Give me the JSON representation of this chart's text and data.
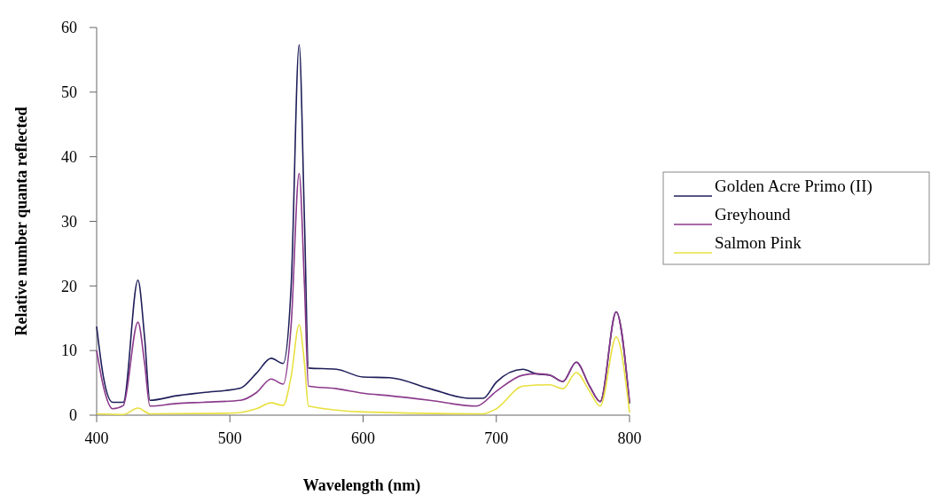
{
  "chart_data": {
    "type": "line",
    "xlabel": "Wavelength (nm)",
    "ylabel": "Relative number quanta reflected",
    "xlim": [
      400,
      800
    ],
    "ylim": [
      0,
      60
    ],
    "xticks": [
      400,
      500,
      600,
      700,
      800
    ],
    "yticks": [
      0,
      10,
      20,
      30,
      40,
      50,
      60
    ],
    "legend": "right",
    "grid": false,
    "marker": "none",
    "line_style": "solid",
    "series": [
      {
        "name": "Golden Acre Primo (II)",
        "color": "#1f1f5a",
        "x": [
          400,
          405,
          412,
          420,
          431,
          436,
          440,
          460,
          480,
          508,
          520,
          531,
          540,
          546,
          552,
          556,
          559,
          580,
          600,
          620,
          650,
          680,
          690,
          700,
          720,
          730,
          740,
          750,
          760,
          770,
          778,
          790,
          800
        ],
        "values": [
          13.7,
          6,
          2,
          2,
          20.9,
          12,
          2.3,
          3,
          3.5,
          4.2,
          6.5,
          8.8,
          8,
          20,
          57.3,
          30,
          7.3,
          7.1,
          5.9,
          5.8,
          4.1,
          2.6,
          2.6,
          5.1,
          7.1,
          6.4,
          6.2,
          5.2,
          8.2,
          4.5,
          2.1,
          16,
          1.8
        ]
      },
      {
        "name": "Greyhound",
        "color": "#8b3a8b",
        "x": [
          400,
          405,
          412,
          420,
          431,
          436,
          440,
          460,
          480,
          508,
          520,
          531,
          540,
          546,
          552,
          556,
          559,
          580,
          600,
          620,
          650,
          685,
          700,
          720,
          730,
          740,
          750,
          760,
          770,
          778,
          790,
          800
        ],
        "values": [
          10,
          4.5,
          1,
          1.5,
          14.4,
          8,
          1.4,
          1.8,
          2,
          2.3,
          3.5,
          5.6,
          4.8,
          14,
          37.4,
          20,
          4.5,
          4.1,
          3.4,
          3,
          2.3,
          1.4,
          3.7,
          6.2,
          6.4,
          6.2,
          5.2,
          8.2,
          4.5,
          2.1,
          16,
          2
        ]
      },
      {
        "name": "Salmon Pink",
        "color": "#e8e040",
        "x": [
          400,
          420,
          431,
          440,
          500,
          520,
          531,
          540,
          546,
          552,
          556,
          559,
          600,
          690,
          700,
          720,
          740,
          750,
          760,
          770,
          778,
          790,
          800
        ],
        "values": [
          0.2,
          0.1,
          1.1,
          0.2,
          0.3,
          1,
          1.9,
          1.5,
          6,
          14,
          8,
          1.4,
          0.5,
          0.2,
          1,
          4.5,
          4.7,
          4.1,
          6.6,
          3.7,
          1.4,
          12.1,
          0.4
        ]
      }
    ]
  }
}
